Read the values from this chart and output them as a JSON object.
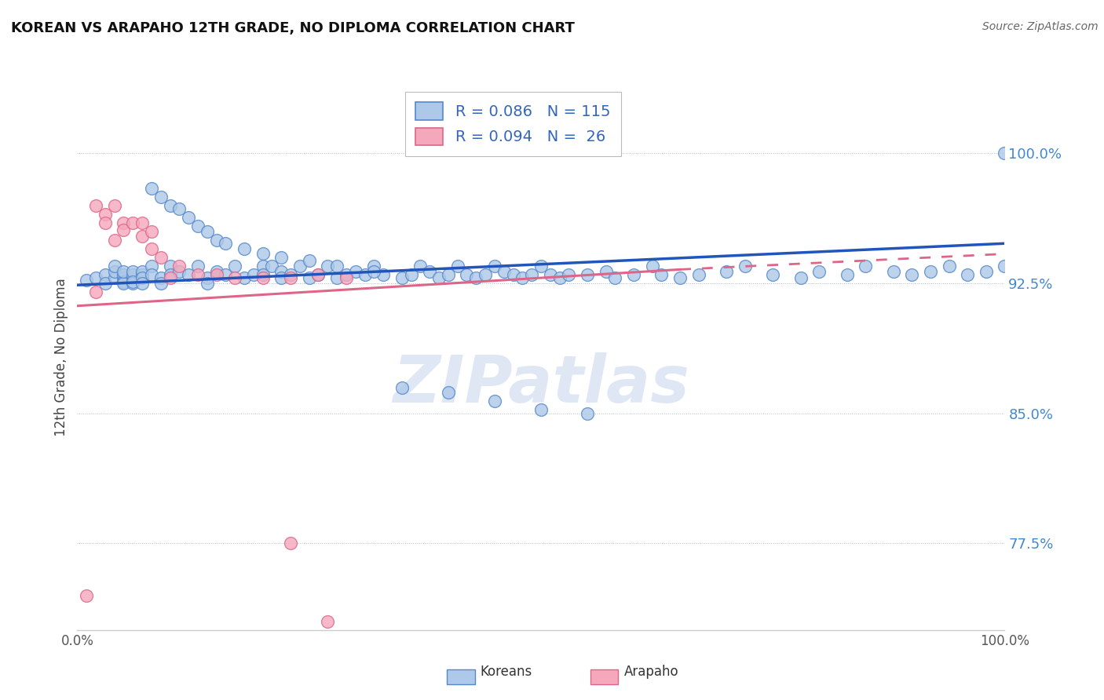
{
  "title": "KOREAN VS ARAPAHO 12TH GRADE, NO DIPLOMA CORRELATION CHART",
  "source": "Source: ZipAtlas.com",
  "ylabel": "12th Grade, No Diploma",
  "ytick_labels": [
    "77.5%",
    "85.0%",
    "92.5%",
    "100.0%"
  ],
  "ytick_values": [
    0.775,
    0.85,
    0.925,
    1.0
  ],
  "xlim": [
    0.0,
    1.0
  ],
  "ylim": [
    0.725,
    1.04
  ],
  "legend_korean": "R = 0.086   N = 115",
  "legend_arapaho": "R = 0.094   N =  26",
  "legend_label1": "Koreans",
  "legend_label2": "Arapaho",
  "korean_color": "#adc8e8",
  "arapaho_color": "#f5a8bc",
  "korean_edge_color": "#5588cc",
  "arapaho_edge_color": "#dd6688",
  "korean_line_color": "#2255bb",
  "arapaho_line_color": "#dd6688",
  "watermark": "ZIPatlas",
  "watermark_color": "#ccd8ee",
  "korean_x": [
    0.01,
    0.02,
    0.03,
    0.03,
    0.04,
    0.04,
    0.04,
    0.05,
    0.05,
    0.05,
    0.05,
    0.05,
    0.06,
    0.06,
    0.06,
    0.06,
    0.06,
    0.07,
    0.07,
    0.07,
    0.07,
    0.08,
    0.08,
    0.09,
    0.09,
    0.1,
    0.1,
    0.11,
    0.12,
    0.13,
    0.14,
    0.14,
    0.15,
    0.16,
    0.17,
    0.18,
    0.19,
    0.2,
    0.2,
    0.21,
    0.22,
    0.22,
    0.23,
    0.24,
    0.25,
    0.26,
    0.27,
    0.28,
    0.29,
    0.3,
    0.31,
    0.32,
    0.33,
    0.35,
    0.36,
    0.37,
    0.38,
    0.39,
    0.4,
    0.41,
    0.42,
    0.43,
    0.44,
    0.45,
    0.46,
    0.47,
    0.48,
    0.49,
    0.5,
    0.51,
    0.52,
    0.53,
    0.55,
    0.57,
    0.58,
    0.6,
    0.62,
    0.63,
    0.65,
    0.67,
    0.7,
    0.72,
    0.75,
    0.78,
    0.8,
    0.83,
    0.85,
    0.88,
    0.9,
    0.92,
    0.94,
    0.96,
    0.98,
    1.0,
    1.0,
    0.08,
    0.09,
    0.1,
    0.11,
    0.12,
    0.13,
    0.14,
    0.15,
    0.16,
    0.18,
    0.2,
    0.22,
    0.25,
    0.28,
    0.32,
    0.35,
    0.4,
    0.45,
    0.5,
    0.55
  ],
  "korean_y": [
    0.927,
    0.928,
    0.93,
    0.925,
    0.928,
    0.932,
    0.935,
    0.928,
    0.93,
    0.926,
    0.925,
    0.932,
    0.928,
    0.93,
    0.932,
    0.925,
    0.926,
    0.93,
    0.932,
    0.928,
    0.925,
    0.935,
    0.93,
    0.928,
    0.925,
    0.935,
    0.93,
    0.932,
    0.93,
    0.935,
    0.928,
    0.925,
    0.932,
    0.93,
    0.935,
    0.928,
    0.93,
    0.935,
    0.93,
    0.935,
    0.932,
    0.928,
    0.93,
    0.935,
    0.928,
    0.93,
    0.935,
    0.928,
    0.93,
    0.932,
    0.93,
    0.935,
    0.93,
    0.928,
    0.93,
    0.935,
    0.932,
    0.928,
    0.93,
    0.935,
    0.93,
    0.928,
    0.93,
    0.935,
    0.932,
    0.93,
    0.928,
    0.93,
    0.935,
    0.93,
    0.928,
    0.93,
    0.93,
    0.932,
    0.928,
    0.93,
    0.935,
    0.93,
    0.928,
    0.93,
    0.932,
    0.935,
    0.93,
    0.928,
    0.932,
    0.93,
    0.935,
    0.932,
    0.93,
    0.932,
    0.935,
    0.93,
    0.932,
    0.935,
    1.0,
    0.98,
    0.975,
    0.97,
    0.968,
    0.963,
    0.958,
    0.955,
    0.95,
    0.948,
    0.945,
    0.942,
    0.94,
    0.938,
    0.935,
    0.932,
    0.865,
    0.862,
    0.857,
    0.852,
    0.85
  ],
  "arapaho_x": [
    0.01,
    0.02,
    0.02,
    0.03,
    0.03,
    0.04,
    0.04,
    0.05,
    0.05,
    0.06,
    0.07,
    0.07,
    0.08,
    0.08,
    0.09,
    0.1,
    0.11,
    0.13,
    0.15,
    0.17,
    0.2,
    0.23,
    0.26,
    0.29,
    0.23,
    0.27
  ],
  "arapaho_y": [
    0.745,
    0.97,
    0.92,
    0.965,
    0.96,
    0.97,
    0.95,
    0.96,
    0.956,
    0.96,
    0.96,
    0.952,
    0.945,
    0.955,
    0.94,
    0.928,
    0.935,
    0.93,
    0.93,
    0.928,
    0.928,
    0.928,
    0.93,
    0.928,
    0.775,
    0.73
  ],
  "korean_trend_x": [
    0.0,
    1.0
  ],
  "korean_trend_y": [
    0.924,
    0.948
  ],
  "arapaho_trend_x": [
    0.0,
    0.65
  ],
  "arapaho_trend_y": [
    0.912,
    0.933
  ]
}
